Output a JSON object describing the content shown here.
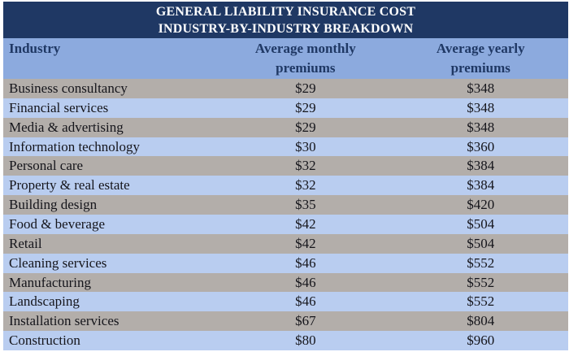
{
  "title": {
    "line1": "GENERAL LIABILITY INSURANCE COST",
    "line2": "INDUSTRY-BY-INDUSTRY BREAKDOWN"
  },
  "table": {
    "header": {
      "industry": "Industry",
      "monthly_line1": "Average monthly",
      "monthly_line2": "premiums",
      "yearly_line1": "Average yearly",
      "yearly_line2": "premiums"
    },
    "rows": [
      {
        "industry": "Business consultancy",
        "monthly": "$29",
        "yearly": "$348"
      },
      {
        "industry": "Financial services",
        "monthly": "$29",
        "yearly": "$348"
      },
      {
        "industry": "Media & advertising",
        "monthly": "$29",
        "yearly": "$348"
      },
      {
        "industry": "Information technology",
        "monthly": "$30",
        "yearly": "$360"
      },
      {
        "industry": "Personal care",
        "monthly": "$32",
        "yearly": "$384"
      },
      {
        "industry": "Property & real estate",
        "monthly": "$32",
        "yearly": "$384"
      },
      {
        "industry": "Building design",
        "monthly": "$35",
        "yearly": "$420"
      },
      {
        "industry": "Food & beverage",
        "monthly": "$42",
        "yearly": "$504"
      },
      {
        "industry": "Retail",
        "monthly": "$42",
        "yearly": "$504"
      },
      {
        "industry": "Cleaning services",
        "monthly": "$46",
        "yearly": "$552"
      },
      {
        "industry": "Manufacturing",
        "monthly": "$46",
        "yearly": "$552"
      },
      {
        "industry": "Landscaping",
        "monthly": "$46",
        "yearly": "$552"
      },
      {
        "industry": "Installation services",
        "monthly": "$67",
        "yearly": "$804"
      },
      {
        "industry": "Construction",
        "monthly": "$80",
        "yearly": "$960"
      }
    ]
  },
  "colors": {
    "page_bg": "#ffffff",
    "title_bar_bg": "#1f3864",
    "title_text": "#ffffff",
    "header_bg": "#8caade",
    "header_text": "#1f3864",
    "row_gray": "#b3aeaa",
    "row_blue": "#b9cdf0",
    "row_text": "#15151b"
  },
  "chart_data": {
    "type": "table",
    "title": "GENERAL LIABILITY INSURANCE COST INDUSTRY-BY-INDUSTRY BREAKDOWN",
    "columns": [
      "Industry",
      "Average monthly premiums",
      "Average yearly premiums"
    ],
    "rows": [
      [
        "Business consultancy",
        29,
        348
      ],
      [
        "Financial services",
        29,
        348
      ],
      [
        "Media & advertising",
        29,
        348
      ],
      [
        "Information technology",
        30,
        360
      ],
      [
        "Personal care",
        32,
        384
      ],
      [
        "Property & real estate",
        32,
        384
      ],
      [
        "Building design",
        35,
        420
      ],
      [
        "Food & beverage",
        42,
        504
      ],
      [
        "Retail",
        42,
        504
      ],
      [
        "Cleaning services",
        46,
        552
      ],
      [
        "Manufacturing",
        46,
        552
      ],
      [
        "Landscaping",
        46,
        552
      ],
      [
        "Installation services",
        67,
        804
      ],
      [
        "Construction",
        80,
        960
      ]
    ],
    "units": "USD",
    "notes": "Rows alternate gray/light-blue backgrounds; premium values centered in columns"
  }
}
